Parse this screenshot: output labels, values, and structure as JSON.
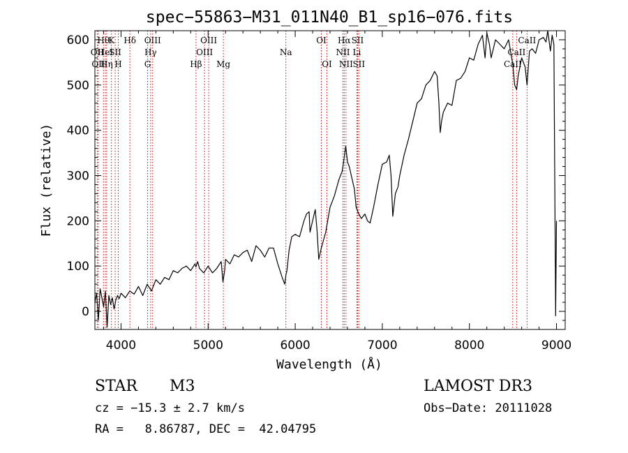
{
  "chart_data": {
    "type": "line",
    "title": "spec−55863−M31_011N40_B1_sp16−076.fits",
    "xlabel": "Wavelength (Å)",
    "ylabel": "Flux (relative)",
    "xlim": [
      3700,
      9100
    ],
    "ylim": [
      -40,
      620
    ],
    "xticks": [
      4000,
      5000,
      6000,
      7000,
      8000,
      9000
    ],
    "yticks": [
      0,
      100,
      200,
      300,
      400,
      500,
      600
    ],
    "xtick_labels": [
      "4000",
      "5000",
      "6000",
      "7000",
      "8000",
      "9000"
    ],
    "ytick_labels": [
      "0",
      "100",
      "200",
      "300",
      "400",
      "500",
      "600"
    ],
    "line_color": "#000000",
    "marker_color": "#cc0000",
    "series": [
      {
        "name": "spectrum",
        "x": [
          3700,
          3720,
          3740,
          3760,
          3780,
          3800,
          3820,
          3840,
          3860,
          3880,
          3900,
          3920,
          3940,
          3960,
          3980,
          4000,
          4050,
          4100,
          4150,
          4200,
          4250,
          4300,
          4350,
          4400,
          4450,
          4500,
          4550,
          4600,
          4650,
          4700,
          4750,
          4800,
          4850,
          4860,
          4880,
          4900,
          4950,
          5000,
          5050,
          5100,
          5150,
          5170,
          5190,
          5200,
          5250,
          5300,
          5350,
          5400,
          5450,
          5500,
          5550,
          5600,
          5650,
          5700,
          5750,
          5800,
          5850,
          5880,
          5893,
          5905,
          5930,
          5960,
          6000,
          6050,
          6100,
          6130,
          6160,
          6170,
          6200,
          6230,
          6250,
          6270,
          6300,
          6350,
          6400,
          6450,
          6500,
          6540,
          6563,
          6580,
          6600,
          6620,
          6650,
          6680,
          6700,
          6730,
          6760,
          6800,
          6830,
          6860,
          6900,
          6950,
          7000,
          7050,
          7080,
          7100,
          7120,
          7150,
          7180,
          7200,
          7250,
          7300,
          7350,
          7400,
          7450,
          7500,
          7550,
          7600,
          7630,
          7650,
          7665,
          7680,
          7700,
          7750,
          7800,
          7850,
          7900,
          7950,
          8000,
          8050,
          8100,
          8150,
          8180,
          8200,
          8230,
          8250,
          8300,
          8350,
          8400,
          8450,
          8498,
          8520,
          8542,
          8560,
          8600,
          8640,
          8662,
          8690,
          8720,
          8760,
          8800,
          8850,
          8880,
          8900,
          8930,
          8950,
          8970,
          8990,
          9000
        ],
        "y": [
          20,
          40,
          -20,
          50,
          30,
          10,
          45,
          -35,
          35,
          15,
          30,
          5,
          25,
          35,
          28,
          40,
          30,
          45,
          38,
          55,
          35,
          60,
          45,
          70,
          60,
          75,
          70,
          90,
          85,
          95,
          100,
          90,
          105,
          98,
          110,
          95,
          85,
          100,
          85,
          95,
          110,
          65,
          90,
          115,
          105,
          125,
          120,
          130,
          135,
          110,
          145,
          135,
          120,
          140,
          140,
          105,
          75,
          60,
          80,
          90,
          135,
          165,
          170,
          165,
          200,
          215,
          220,
          175,
          200,
          225,
          180,
          115,
          140,
          175,
          230,
          255,
          290,
          310,
          340,
          365,
          330,
          320,
          295,
          270,
          230,
          215,
          205,
          215,
          200,
          195,
          230,
          280,
          325,
          330,
          345,
          300,
          210,
          260,
          275,
          300,
          345,
          380,
          420,
          460,
          470,
          500,
          510,
          530,
          520,
          460,
          395,
          420,
          440,
          460,
          455,
          510,
          515,
          530,
          560,
          555,
          590,
          610,
          560,
          615,
          590,
          560,
          600,
          590,
          580,
          600,
          545,
          500,
          490,
          520,
          560,
          540,
          500,
          575,
          580,
          570,
          600,
          605,
          595,
          620,
          575,
          610,
          590,
          -10,
          200
        ]
      }
    ],
    "lines": [
      {
        "label": "Hθ",
        "x": 3798,
        "row": 1
      },
      {
        "label": "OII",
        "x": 3727,
        "row": 2
      },
      {
        "label": "OII",
        "x": 3740,
        "row": 3
      },
      {
        "label": "HeI",
        "x": 3820,
        "row": 2
      },
      {
        "label": "Hη",
        "x": 3835,
        "row": 3
      },
      {
        "label": "K",
        "x": 3890,
        "row": 1
      },
      {
        "label": "SII",
        "x": 3933,
        "row": 2
      },
      {
        "label": "H",
        "x": 3968,
        "row": 3
      },
      {
        "label": "Hδ",
        "x": 4102,
        "row": 1
      },
      {
        "label": "OIII",
        "x": 4363,
        "row": 1
      },
      {
        "label": "Hγ",
        "x": 4340,
        "row": 2
      },
      {
        "label": "G",
        "x": 4305,
        "row": 3
      },
      {
        "label": "Hβ",
        "x": 4861,
        "row": 3
      },
      {
        "label": "OIII",
        "x": 4959,
        "row": 2
      },
      {
        "label": "OIII",
        "x": 5007,
        "row": 1
      },
      {
        "label": "Mg",
        "x": 5175,
        "row": 3
      },
      {
        "label": "Na",
        "x": 5893,
        "row": 2
      },
      {
        "label": "OI",
        "x": 6300,
        "row": 1
      },
      {
        "label": "OI",
        "x": 6364,
        "row": 3
      },
      {
        "label": "Hα",
        "x": 6563,
        "row": 1
      },
      {
        "label": "NII",
        "x": 6548,
        "row": 2
      },
      {
        "label": "NII",
        "x": 6583,
        "row": 3
      },
      {
        "label": "SII",
        "x": 6716,
        "row": 1
      },
      {
        "label": "Li",
        "x": 6708,
        "row": 2
      },
      {
        "label": "SII",
        "x": 6731,
        "row": 3
      },
      {
        "label": "CaII",
        "x": 8498,
        "row": 3
      },
      {
        "label": "CaII",
        "x": 8542,
        "row": 2
      },
      {
        "label": "CaII",
        "x": 8662,
        "row": 1
      }
    ]
  },
  "info": {
    "object_type": "STAR",
    "subclass": "M3",
    "survey": "LAMOST DR3",
    "cz": "cz = −15.3 ± 2.7 km/s",
    "obs_date": "Obs−Date: 20111028",
    "coords": "RA =   8.86787, DEC =  42.04795"
  }
}
